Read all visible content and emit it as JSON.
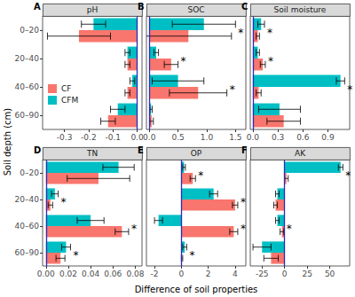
{
  "chart_data": [
    {
      "type": "bar",
      "orientation": "horizontal",
      "panel": "A",
      "title": "pH",
      "categories": [
        "0–20",
        "20–40",
        "40–60",
        "60–90"
      ],
      "series": [
        {
          "name": "CF",
          "color": "#F8766D",
          "values": [
            -0.24,
            -0.04,
            -0.04,
            -0.12
          ],
          "errors": [
            0.13,
            0.01,
            0.01,
            0.03
          ]
        },
        {
          "name": "CFM",
          "color": "#00BFC4",
          "values": [
            -0.18,
            -0.04,
            -0.02,
            -0.08
          ],
          "errors": [
            0.05,
            0.01,
            0.01,
            0.03
          ]
        }
      ],
      "significance": [
        null,
        null,
        null,
        null
      ],
      "xlim": [
        -0.39,
        0.02
      ],
      "xticks": [
        -0.3,
        -0.2,
        -0.1,
        {
          "value": 0,
          "label": "0.0"
        }
      ],
      "grid": false,
      "legend": "bottom-left"
    },
    {
      "type": "bar",
      "orientation": "horizontal",
      "panel": "B",
      "title": "SOC",
      "categories": [
        "0–20",
        "20–40",
        "40–60",
        "60–90"
      ],
      "series": [
        {
          "name": "CF",
          "color": "#F8766D",
          "values": [
            0.68,
            0.38,
            0.85,
            0.04
          ],
          "errors": [
            0.75,
            0.12,
            0.5,
            0.03
          ]
        },
        {
          "name": "CFM",
          "color": "#00BFC4",
          "values": [
            0.95,
            0.12,
            0.5,
            0.03
          ],
          "errors": [
            0.55,
            0.04,
            0.45,
            0.02
          ]
        }
      ],
      "significance": [
        "*",
        "*",
        "*",
        null
      ],
      "xlim": [
        -0.05,
        1.68
      ],
      "xticks": [
        {
          "value": 0,
          "label": "0.0"
        },
        0.5,
        {
          "value": 1,
          "label": "1.0"
        },
        1.5
      ],
      "grid": false,
      "tick_labels": "x"
    },
    {
      "type": "bar",
      "orientation": "horizontal",
      "panel": "C",
      "title": "Soil moisture",
      "categories": [
        "0–20",
        "20–40",
        "40–60",
        "60–90"
      ],
      "series": [
        {
          "name": "CF",
          "color": "#F8766D",
          "values": [
            0.06,
            0.12,
            0.07,
            0.37
          ],
          "errors": [
            0.02,
            0.03,
            0.03,
            0.2
          ]
        },
        {
          "name": "CFM",
          "color": "#00BFC4",
          "values": [
            0.1,
            0.06,
            1.05,
            0.32
          ],
          "errors": [
            0.04,
            0.02,
            0.05,
            0.25
          ]
        }
      ],
      "significance": [
        "*",
        "*",
        "*",
        null
      ],
      "xlim": [
        -0.03,
        1.16
      ],
      "xticks": [
        {
          "value": 0,
          "label": "0.0"
        },
        0.3,
        0.6,
        0.9
      ],
      "grid": false,
      "tick_labels": "x"
    },
    {
      "type": "bar",
      "orientation": "horizontal",
      "panel": "D",
      "title": "TN",
      "categories": [
        "0–20",
        "20–40",
        "40–60",
        "60–90"
      ],
      "series": [
        {
          "name": "CF",
          "color": "#F8766D",
          "values": [
            0.047,
            0.004,
            0.068,
            0.013
          ],
          "errors": [
            0.028,
            0.002,
            0.006,
            0.004
          ]
        },
        {
          "name": "CFM",
          "color": "#00BFC4",
          "values": [
            0.065,
            0.008,
            0.04,
            0.018
          ],
          "errors": [
            0.014,
            0.003,
            0.012,
            0.004
          ]
        }
      ],
      "significance": [
        null,
        "*",
        "*",
        "*"
      ],
      "xlim": [
        -0.003,
        0.086
      ],
      "xticks": [
        {
          "value": 0,
          "label": "0.00"
        },
        {
          "value": 0.02,
          "label": "0.02"
        },
        {
          "value": 0.04,
          "label": "0.04"
        },
        {
          "value": 0.06,
          "label": "0.06"
        },
        {
          "value": 0.08,
          "label": "0.08"
        }
      ],
      "grid": false
    },
    {
      "type": "bar",
      "orientation": "horizontal",
      "panel": "E",
      "title": "OP",
      "categories": [
        "0–20",
        "20–40",
        "40–60",
        "60–90"
      ],
      "series": [
        {
          "name": "CF",
          "color": "#F8766D",
          "values": [
            0.85,
            4.0,
            3.9,
            0.05
          ],
          "errors": [
            0.2,
            0.2,
            0.3,
            0.05
          ]
        },
        {
          "name": "CFM",
          "color": "#00BFC4",
          "values": [
            0.2,
            2.4,
            -1.7,
            0.25
          ],
          "errors": [
            0.1,
            0.3,
            0.3,
            0.15
          ]
        }
      ],
      "significance": [
        "*",
        "*",
        "*",
        "*"
      ],
      "xlim": [
        -2.6,
        4.8
      ],
      "xticks": [
        -2,
        0,
        2,
        4
      ],
      "grid": false,
      "tick_labels": "x"
    },
    {
      "type": "bar",
      "orientation": "horizontal",
      "panel": "F",
      "title": "AK",
      "categories": [
        "0–20",
        "20–40",
        "40–60",
        "60–90"
      ],
      "series": [
        {
          "name": "CF",
          "color": "#F8766D",
          "values": [
            2,
            -10,
            -3,
            -15
          ],
          "errors": [
            2,
            2,
            2,
            8
          ]
        },
        {
          "name": "CFM",
          "color": "#00BFC4",
          "values": [
            62,
            -8,
            -8,
            -25
          ],
          "errors": [
            2.5,
            2,
            2,
            10
          ]
        }
      ],
      "significance": [
        "*",
        null,
        "*",
        null
      ],
      "xlim": [
        -38,
        72
      ],
      "xticks": [
        -25,
        0,
        25,
        50
      ],
      "grid": false,
      "tick_labels": "x"
    }
  ],
  "xlabel": "Difference of soil properties",
  "ylabel": "Soil depth (cm)"
}
